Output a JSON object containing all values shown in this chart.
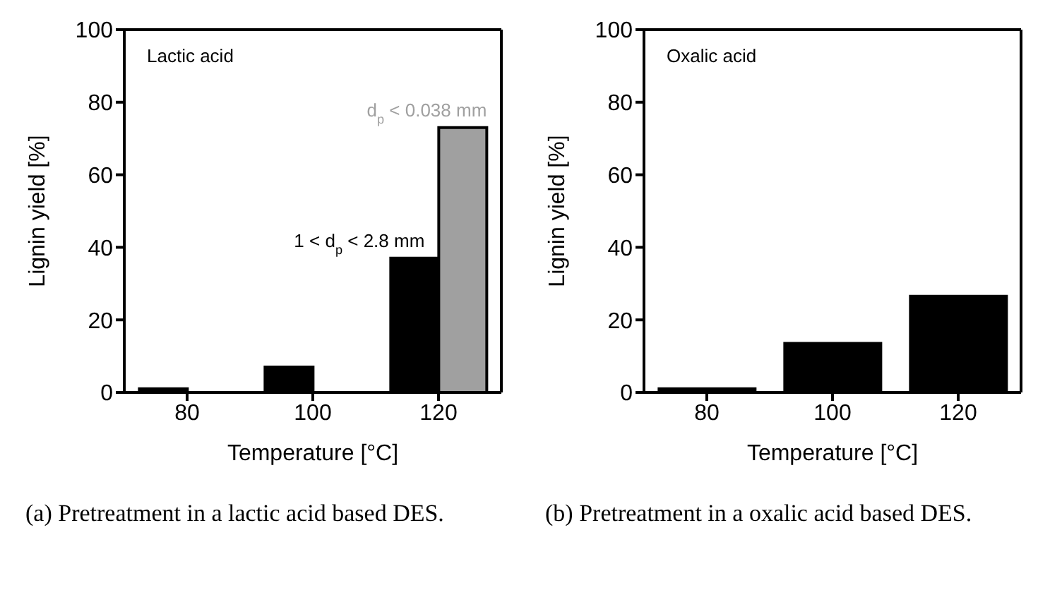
{
  "chart_data": [
    {
      "type": "bar",
      "categories": [
        "80",
        "100",
        "120"
      ],
      "xlabel": "Temperature [°C]",
      "ylabel": "Lignin yield [%]",
      "ylim": [
        0,
        100
      ],
      "yticks": [
        0,
        20,
        40,
        60,
        80,
        100
      ],
      "grid": false,
      "legend": false,
      "series": [
        {
          "name": "1 < d$_{p}$ < 2.8 mm",
          "color": "#000000",
          "values": [
            1,
            7,
            37
          ]
        },
        {
          "name": "d$_{p}$ < 0.038 mm",
          "color": "#a0a0a0",
          "values": [
            null,
            null,
            73
          ]
        }
      ],
      "annotations": [
        "Lactic acid",
        "(a) Pretreatment in a lactic acid based DES."
      ]
    },
    {
      "type": "bar",
      "categories": [
        "80",
        "100",
        "120"
      ],
      "xlabel": "Temperature [°C]",
      "ylabel": "Lignin yield [%]",
      "ylim": [
        0,
        100
      ],
      "yticks": [
        0,
        20,
        40,
        60,
        80,
        100
      ],
      "grid": false,
      "legend": false,
      "series": [
        {
          "color": "#000000",
          "values": [
            1,
            13.5,
            26.5
          ]
        }
      ],
      "annotations": [
        "Oxalic acid",
        "(b) Pretreatment in a oxalic acid based DES."
      ]
    }
  ]
}
